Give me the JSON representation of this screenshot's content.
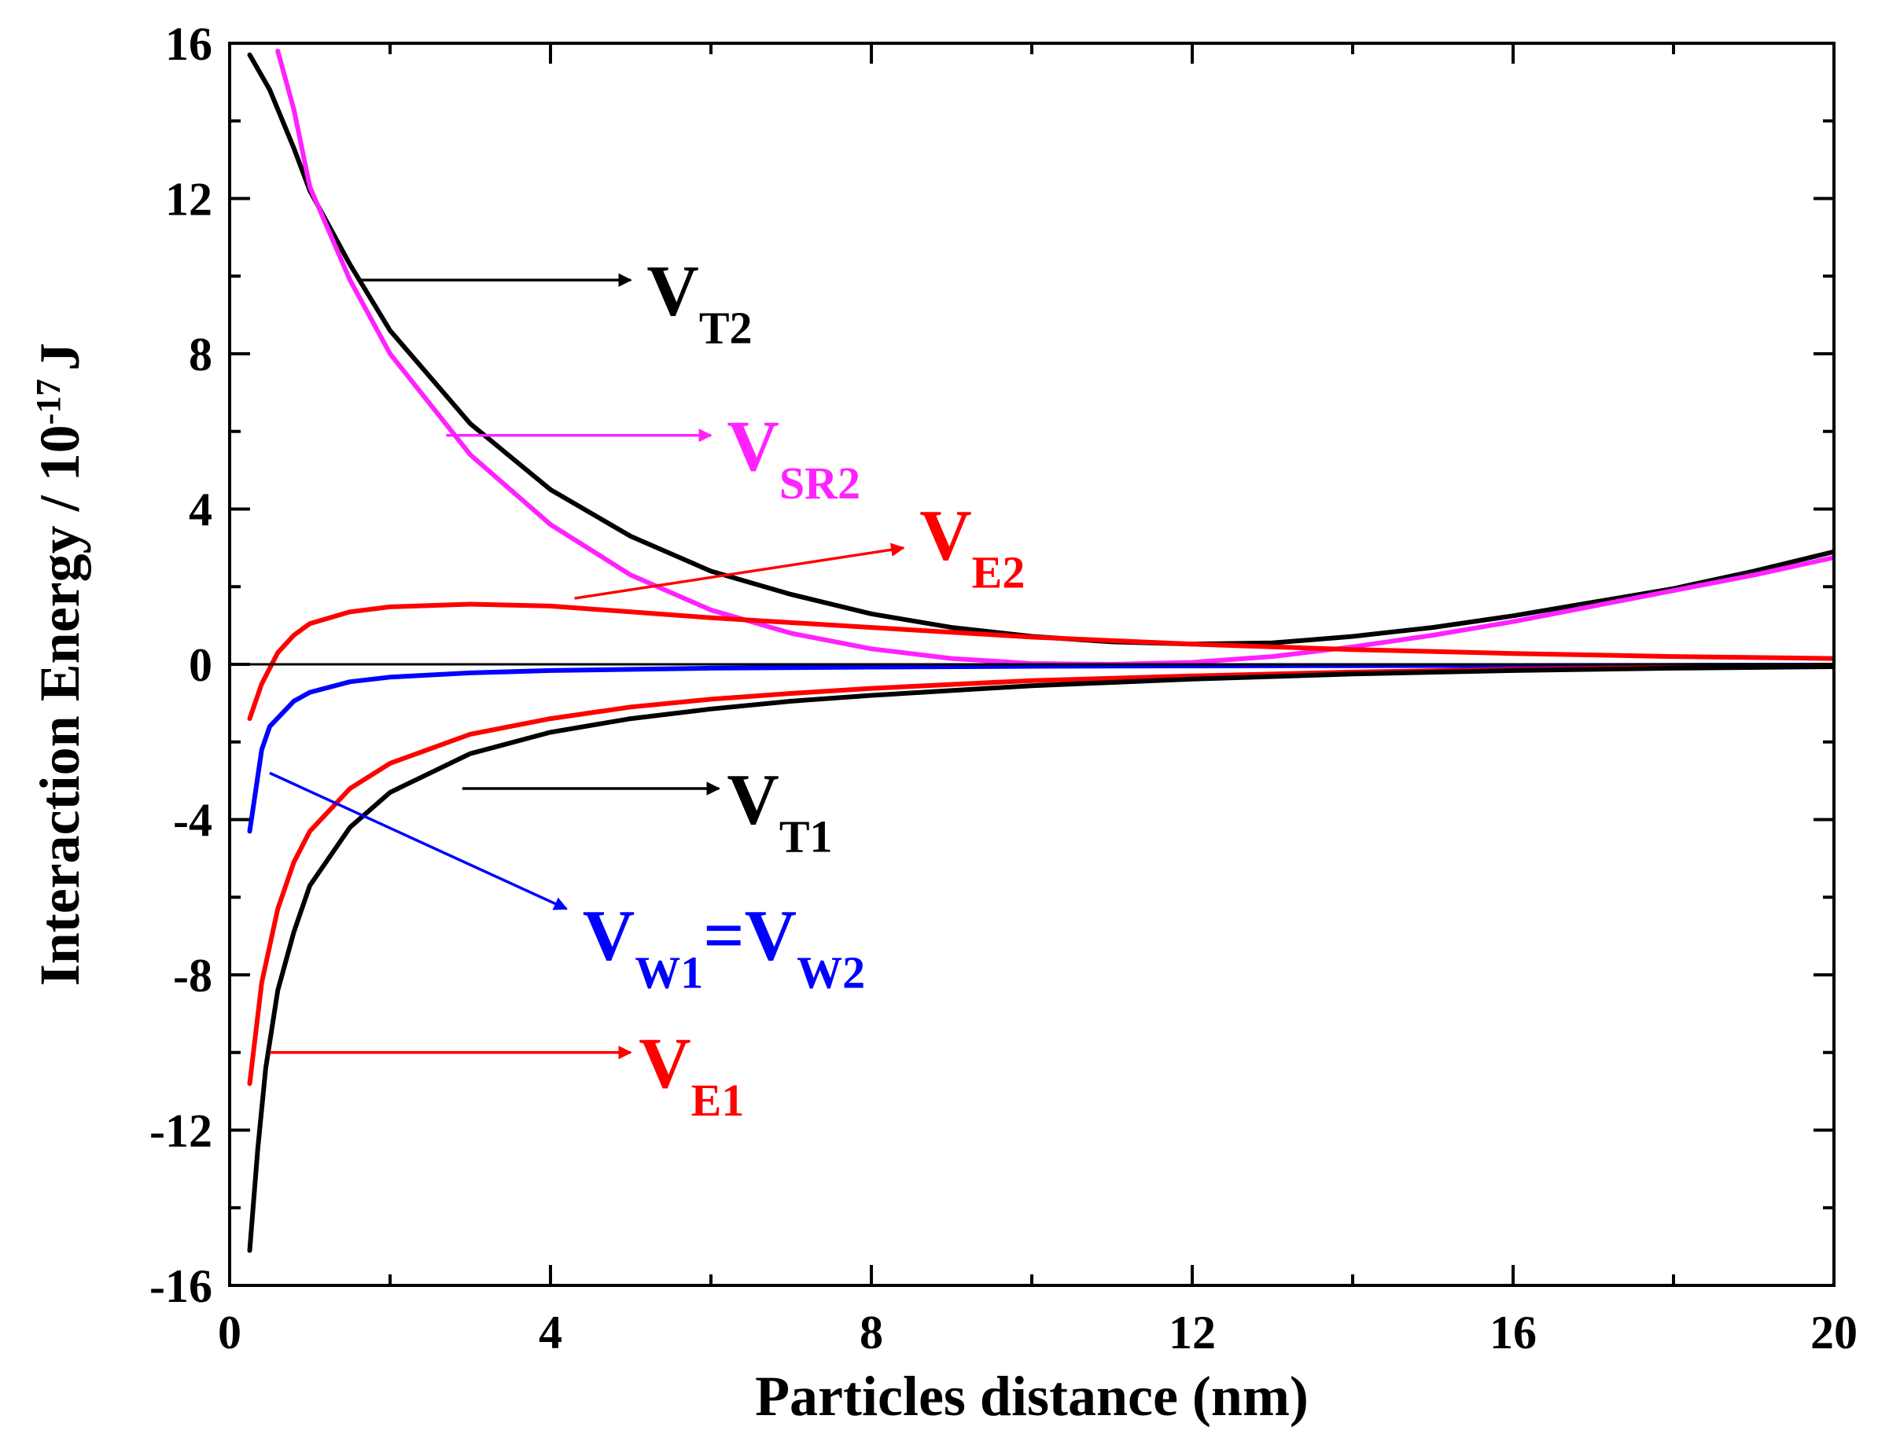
{
  "chart_data": {
    "type": "line",
    "title": "",
    "xlabel": "Particles distance (nm)",
    "ylabel": {
      "base": "Interaction Energy / 10",
      "exponent": "-17",
      "unit": "J"
    },
    "xlim": [
      0,
      20
    ],
    "ylim": [
      -16,
      16
    ],
    "xticks": [
      {
        "value": 0,
        "label": "0"
      },
      {
        "value": 4,
        "label": "4"
      },
      {
        "value": 8,
        "label": "8"
      },
      {
        "value": 12,
        "label": "12"
      },
      {
        "value": 16,
        "label": "16"
      },
      {
        "value": 20,
        "label": "20"
      }
    ],
    "yticks": [
      {
        "value": 16,
        "label": "16"
      },
      {
        "value": 12,
        "label": "12"
      },
      {
        "value": 8,
        "label": "8"
      },
      {
        "value": 4,
        "label": "4"
      },
      {
        "value": 0,
        "label": "0"
      },
      {
        "value": -4,
        "label": "-4"
      },
      {
        "value": -8,
        "label": "-8"
      },
      {
        "value": -12,
        "label": "-12"
      },
      {
        "value": -16,
        "label": "-16"
      }
    ],
    "grid": false,
    "zero_line": true,
    "series": [
      {
        "name": "VT2",
        "color": "#000000",
        "x": [
          0.25,
          0.5,
          0.8,
          1,
          1.5,
          2,
          3,
          4,
          5,
          6,
          7,
          8,
          9,
          10,
          11,
          12,
          13,
          14,
          15,
          16,
          17,
          18,
          19,
          20
        ],
        "y": [
          15.7,
          14.8,
          13.3,
          12.2,
          10.3,
          8.6,
          6.2,
          4.5,
          3.3,
          2.4,
          1.8,
          1.3,
          0.95,
          0.72,
          0.58,
          0.52,
          0.55,
          0.72,
          0.95,
          1.25,
          1.6,
          1.95,
          2.4,
          2.9
        ]
      },
      {
        "name": "VSR2",
        "color": "#ff22ff",
        "x": [
          0.6,
          0.8,
          1,
          1.5,
          2,
          3,
          4,
          5,
          6,
          7,
          8,
          9,
          10,
          11,
          12,
          13,
          14,
          15,
          16,
          17,
          18,
          19,
          20
        ],
        "y": [
          15.8,
          14.3,
          12.3,
          9.9,
          8.0,
          5.4,
          3.6,
          2.3,
          1.4,
          0.8,
          0.4,
          0.15,
          0.02,
          0.0,
          0.05,
          0.2,
          0.45,
          0.75,
          1.1,
          1.5,
          1.9,
          2.3,
          2.75
        ]
      },
      {
        "name": "VE2",
        "color": "#ff0000",
        "x": [
          0.25,
          0.4,
          0.6,
          0.8,
          1,
          1.5,
          2,
          3,
          4,
          5,
          6,
          8,
          10,
          12,
          14,
          16,
          18,
          20
        ],
        "y": [
          -1.4,
          -0.5,
          0.3,
          0.75,
          1.05,
          1.35,
          1.48,
          1.55,
          1.5,
          1.35,
          1.2,
          0.95,
          0.7,
          0.52,
          0.38,
          0.28,
          0.2,
          0.15
        ]
      },
      {
        "name": "VW1=VW2",
        "color": "#0000ff",
        "x": [
          0.25,
          0.4,
          0.5,
          0.8,
          1,
          1.5,
          2,
          3,
          4,
          6,
          8,
          10,
          12,
          14,
          16,
          18,
          20
        ],
        "y": [
          -4.3,
          -2.2,
          -1.6,
          -0.95,
          -0.72,
          -0.45,
          -0.33,
          -0.22,
          -0.16,
          -0.1,
          -0.07,
          -0.05,
          -0.04,
          -0.035,
          -0.03,
          -0.025,
          -0.02
        ]
      },
      {
        "name": "VE1",
        "color": "#ff0000",
        "x": [
          0.25,
          0.4,
          0.6,
          0.8,
          1,
          1.5,
          2,
          3,
          4,
          5,
          6,
          7,
          8,
          10,
          12,
          14,
          16,
          18,
          20
        ],
        "y": [
          -10.8,
          -8.2,
          -6.3,
          -5.1,
          -4.3,
          -3.2,
          -2.55,
          -1.8,
          -1.4,
          -1.1,
          -0.9,
          -0.75,
          -0.62,
          -0.42,
          -0.3,
          -0.2,
          -0.13,
          -0.08,
          -0.05
        ]
      },
      {
        "name": "VT1",
        "color": "#000000",
        "x": [
          0.25,
          0.35,
          0.45,
          0.6,
          0.8,
          1,
          1.5,
          2,
          3,
          4,
          5,
          6,
          7,
          8,
          10,
          12,
          14,
          16,
          18,
          20
        ],
        "y": [
          -15.1,
          -12.5,
          -10.4,
          -8.4,
          -6.9,
          -5.7,
          -4.2,
          -3.3,
          -2.3,
          -1.75,
          -1.4,
          -1.15,
          -0.95,
          -0.8,
          -0.55,
          -0.38,
          -0.25,
          -0.16,
          -0.1,
          -0.06
        ]
      }
    ],
    "annotations": [
      {
        "series": "VT2",
        "main": "V",
        "sub": "T2",
        "color": "#000000",
        "arrow_from": [
          1.6,
          9.9
        ],
        "arrow_to": [
          5,
          9.9
        ],
        "label_at": [
          5.2,
          9.0
        ]
      },
      {
        "series": "VSR2",
        "main": "V",
        "sub": "SR2",
        "color": "#ff22ff",
        "arrow_from": [
          2.7,
          5.9
        ],
        "arrow_to": [
          6.0,
          5.9
        ],
        "label_at": [
          6.2,
          5.0
        ]
      },
      {
        "series": "VE2",
        "main": "V",
        "sub": "E2",
        "color": "#ff0000",
        "arrow_from": [
          4.3,
          1.7
        ],
        "arrow_to": [
          8.4,
          3.0
        ],
        "label_at": [
          8.6,
          2.7
        ]
      },
      {
        "series": "VT1",
        "main": "V",
        "sub": "T1",
        "color": "#000000",
        "arrow_from": [
          2.9,
          -3.2
        ],
        "arrow_to": [
          6.1,
          -3.2
        ],
        "label_at": [
          6.2,
          -4.1
        ]
      },
      {
        "series": "VW1=VW2",
        "main": "V",
        "sub": "W1",
        "mid": "=V",
        "sub2": "W2",
        "color": "#0000ff",
        "arrow_from": [
          0.5,
          -2.8
        ],
        "arrow_to": [
          4.2,
          -6.3
        ],
        "label_at": [
          4.4,
          -7.6
        ]
      },
      {
        "series": "VE1",
        "main": "V",
        "sub": "E1",
        "color": "#ff0000",
        "arrow_from": [
          0.5,
          -10.0
        ],
        "arrow_to": [
          5.0,
          -10.0
        ],
        "label_at": [
          5.1,
          -10.9
        ]
      }
    ]
  }
}
